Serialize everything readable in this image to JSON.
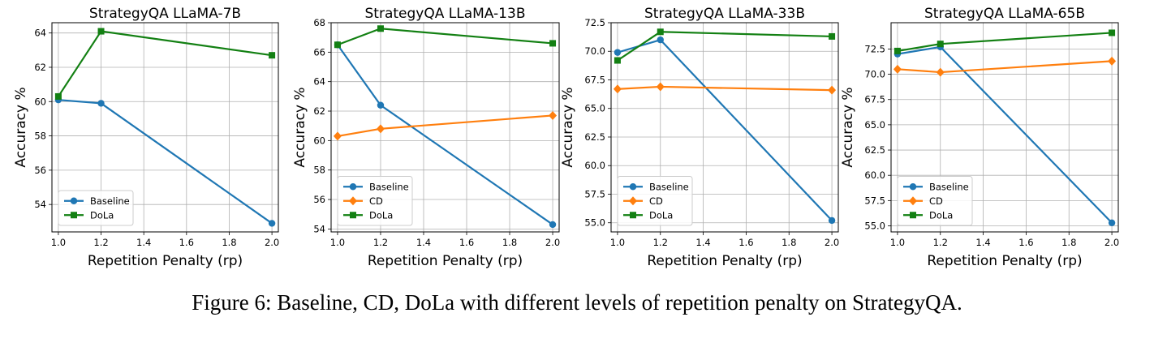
{
  "caption": "Figure 6: Baseline, CD, DoLa with different levels of repetition penalty on StrategyQA.",
  "colors": {
    "Baseline": "#1f77b4",
    "CD": "#ff7f0e",
    "DoLa": "#138013"
  },
  "chart_data": [
    {
      "type": "line",
      "title": "StrategyQA LLaMA-7B",
      "xlabel": "Repetition Penalty (rp)",
      "ylabel": "Accuracy %",
      "x": [
        1.0,
        1.2,
        2.0
      ],
      "xlim": [
        0.97,
        2.03
      ],
      "ylim": [
        52.4,
        64.6
      ],
      "xticks": [
        1.0,
        1.2,
        1.4,
        1.6,
        1.8,
        2.0
      ],
      "xtick_labels": [
        "1.0",
        "1.2",
        "1.4",
        "1.6",
        "1.8",
        "2.0"
      ],
      "yticks": [
        54,
        56,
        58,
        60,
        62,
        64
      ],
      "ytick_labels": [
        "54",
        "56",
        "58",
        "60",
        "62",
        "64"
      ],
      "grid": true,
      "legend_loc": "lower-left",
      "series": [
        {
          "name": "Baseline",
          "marker": "circle",
          "values": [
            60.1,
            59.9,
            52.9
          ]
        },
        {
          "name": "DoLa",
          "marker": "square",
          "values": [
            60.3,
            64.1,
            62.7
          ]
        }
      ]
    },
    {
      "type": "line",
      "title": "StrategyQA LLaMA-13B",
      "xlabel": "Repetition Penalty (rp)",
      "ylabel": "Accuracy %",
      "x": [
        1.0,
        1.2,
        2.0
      ],
      "xlim": [
        0.97,
        2.03
      ],
      "ylim": [
        53.8,
        68.0
      ],
      "xticks": [
        1.0,
        1.2,
        1.4,
        1.6,
        1.8,
        2.0
      ],
      "xtick_labels": [
        "1.0",
        "1.2",
        "1.4",
        "1.6",
        "1.8",
        "2.0"
      ],
      "yticks": [
        54,
        56,
        58,
        60,
        62,
        64,
        66,
        68
      ],
      "ytick_labels": [
        "54",
        "56",
        "58",
        "60",
        "62",
        "64",
        "66",
        "68"
      ],
      "grid": true,
      "legend_loc": "lower-left",
      "series": [
        {
          "name": "Baseline",
          "marker": "circle",
          "values": [
            66.5,
            62.4,
            54.3
          ]
        },
        {
          "name": "CD",
          "marker": "diamond",
          "values": [
            60.3,
            60.8,
            61.7
          ]
        },
        {
          "name": "DoLa",
          "marker": "square",
          "values": [
            66.5,
            67.6,
            66.6
          ]
        }
      ]
    },
    {
      "type": "line",
      "title": "StrategyQA LLaMA-33B",
      "xlabel": "Repetition Penalty (rp)",
      "ylabel": "Accuracy %",
      "x": [
        1.0,
        1.2,
        2.0
      ],
      "xlim": [
        0.97,
        2.03
      ],
      "ylim": [
        54.2,
        72.5
      ],
      "xticks": [
        1.0,
        1.2,
        1.4,
        1.6,
        1.8,
        2.0
      ],
      "xtick_labels": [
        "1.0",
        "1.2",
        "1.4",
        "1.6",
        "1.8",
        "2.0"
      ],
      "yticks": [
        55.0,
        57.5,
        60.0,
        62.5,
        65.0,
        67.5,
        70.0,
        72.5
      ],
      "ytick_labels": [
        "55.0",
        "57.5",
        "60.0",
        "62.5",
        "65.0",
        "67.5",
        "70.0",
        "72.5"
      ],
      "grid": true,
      "legend_loc": "lower-left",
      "series": [
        {
          "name": "Baseline",
          "marker": "circle",
          "values": [
            69.9,
            71.0,
            55.2
          ]
        },
        {
          "name": "CD",
          "marker": "diamond",
          "values": [
            66.7,
            66.9,
            66.6
          ]
        },
        {
          "name": "DoLa",
          "marker": "square",
          "values": [
            69.2,
            71.7,
            71.3
          ]
        }
      ]
    },
    {
      "type": "line",
      "title": "StrategyQA LLaMA-65B",
      "xlabel": "Repetition Penalty (rp)",
      "ylabel": "Accuracy %",
      "x": [
        1.0,
        1.2,
        2.0
      ],
      "xlim": [
        0.97,
        2.03
      ],
      "ylim": [
        54.4,
        75.1
      ],
      "xticks": [
        1.0,
        1.2,
        1.4,
        1.6,
        1.8,
        2.0
      ],
      "xtick_labels": [
        "1.0",
        "1.2",
        "1.4",
        "1.6",
        "1.8",
        "2.0"
      ],
      "yticks": [
        55.0,
        57.5,
        60.0,
        62.5,
        65.0,
        67.5,
        70.0,
        72.5
      ],
      "ytick_labels": [
        "55.0",
        "57.5",
        "60.0",
        "62.5",
        "65.0",
        "67.5",
        "70.0",
        "72.5"
      ],
      "grid": true,
      "legend_loc": "lower-left",
      "series": [
        {
          "name": "Baseline",
          "marker": "circle",
          "values": [
            72.0,
            72.7,
            55.3
          ]
        },
        {
          "name": "CD",
          "marker": "diamond",
          "values": [
            70.5,
            70.2,
            71.3
          ]
        },
        {
          "name": "DoLa",
          "marker": "square",
          "values": [
            72.3,
            73.0,
            74.1
          ]
        }
      ]
    }
  ]
}
